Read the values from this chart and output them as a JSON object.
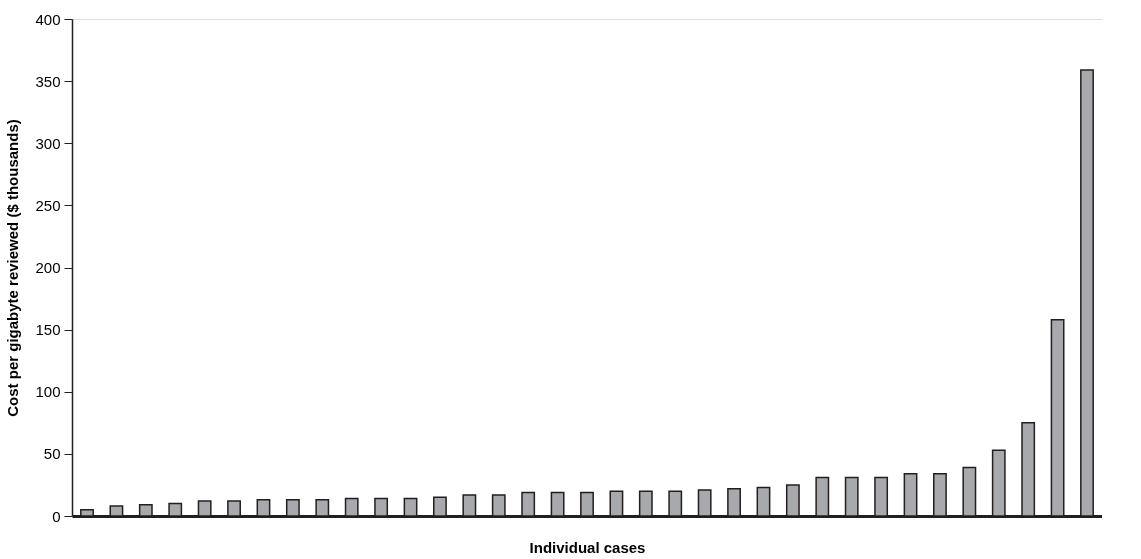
{
  "chart_data": {
    "type": "bar",
    "xlabel": "Individual cases",
    "ylabel": "Cost per gigabyte reviewed ($ thousands)",
    "categories": [
      null,
      null,
      null,
      null,
      null,
      null,
      null,
      null,
      null,
      null,
      null,
      null,
      null,
      null,
      null,
      null,
      null,
      null,
      null,
      null,
      null,
      null,
      null,
      null,
      null,
      null,
      null,
      null,
      null,
      null,
      null,
      null,
      null,
      null,
      null
    ],
    "values": [
      5,
      8,
      9,
      10,
      12,
      12,
      13,
      13,
      13,
      14,
      14,
      14,
      15,
      17,
      17,
      19,
      19,
      19,
      20,
      20,
      20,
      21,
      22,
      23,
      25,
      31,
      31,
      31,
      34,
      34,
      39,
      53,
      75,
      158,
      359
    ],
    "color": "#a7a9ac",
    "ylim": [
      0,
      400
    ],
    "yticks": [
      0,
      50,
      100,
      150,
      200,
      250,
      300,
      350,
      400
    ],
    "grid": false
  }
}
